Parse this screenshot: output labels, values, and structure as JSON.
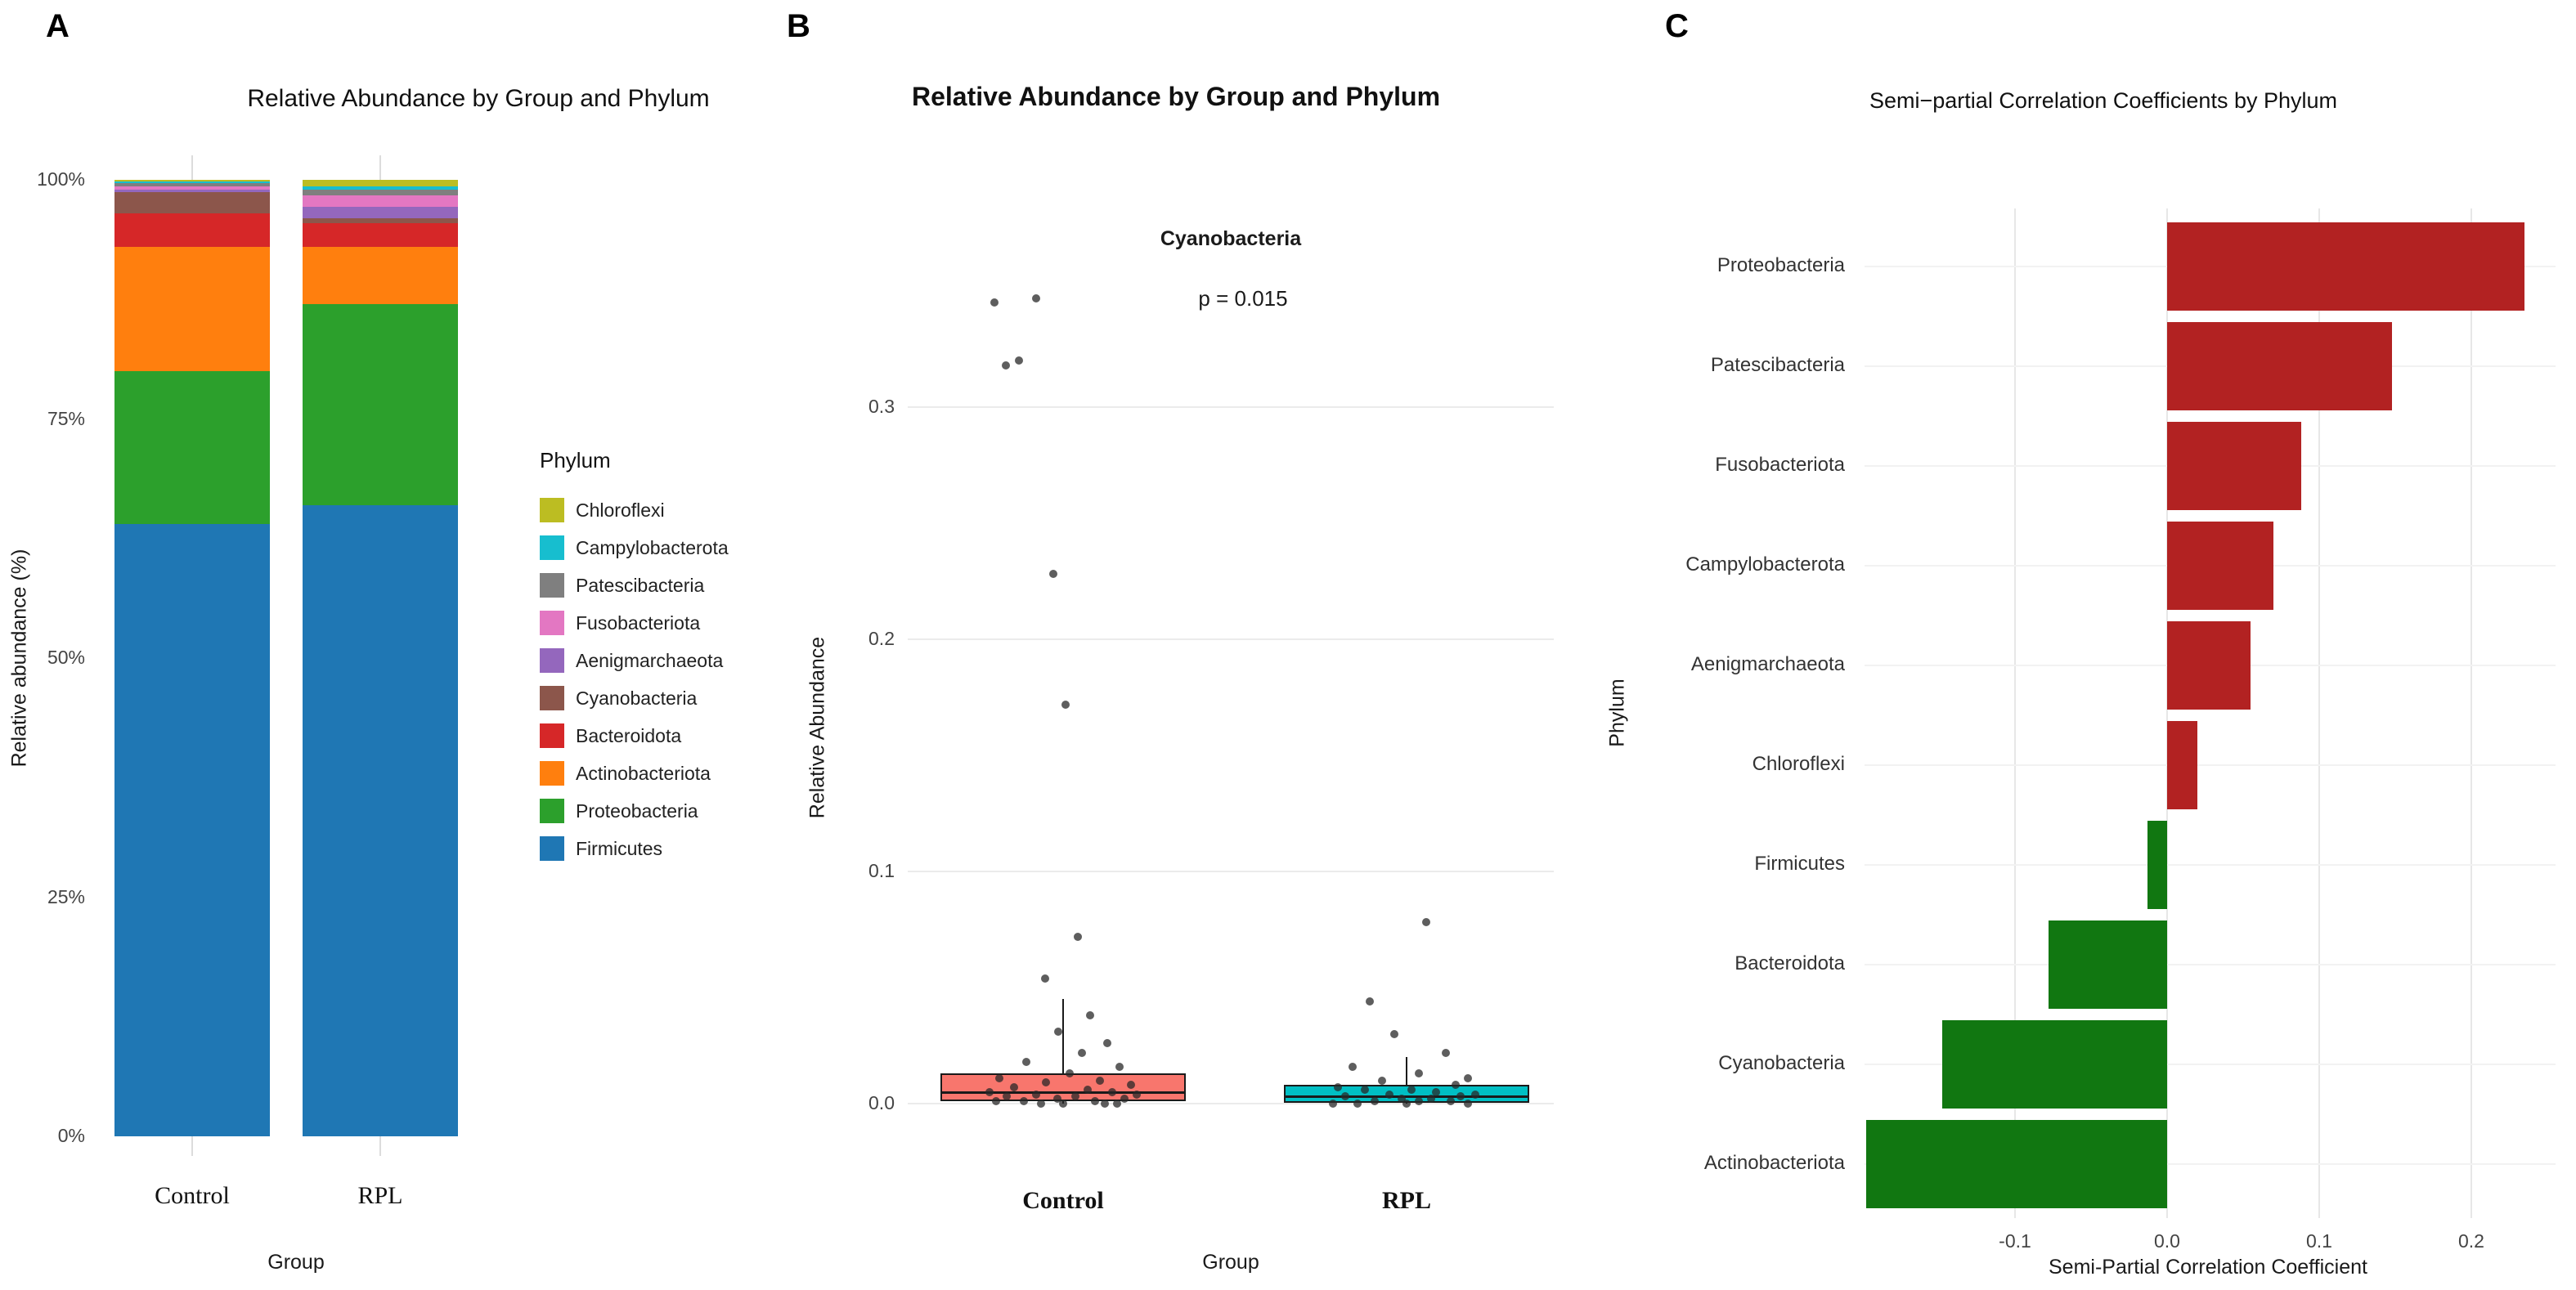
{
  "panels": {
    "a": {
      "label": "A",
      "title": "Relative Abundance by Group and Phylum",
      "x_axis_title": "Group",
      "y_axis_title": "Relative abundance (%)",
      "legend_title": "Phylum"
    },
    "b": {
      "label": "B",
      "title": "Relative Abundance by Group and Phylum",
      "subtitle": "Cyanobacteria",
      "p_value": "p = 0.015",
      "x_axis_title": "Group",
      "y_axis_title": "Relative Abundance"
    },
    "c": {
      "label": "C",
      "title": "Semi−partial Correlation Coefficients by Phylum",
      "x_axis_title": "Semi-Partial Correlation Coefficient",
      "y_axis_title": "Phylum"
    }
  },
  "chart_data": [
    {
      "panel": "A",
      "type": "bar",
      "subtype": "stacked-percent",
      "title": "Relative Abundance by Group and Phylum",
      "xlabel": "Group",
      "ylabel": "Relative abundance (%)",
      "ylim": [
        0,
        100
      ],
      "categories": [
        "Control",
        "RPL"
      ],
      "y_ticks": [
        {
          "v": 0,
          "label": "0%"
        },
        {
          "v": 25,
          "label": "25%"
        },
        {
          "v": 50,
          "label": "50%"
        },
        {
          "v": 75,
          "label": "75%"
        },
        {
          "v": 100,
          "label": "100%"
        }
      ],
      "legend_title": "Phylum",
      "legend_order": [
        "Chloroflexi",
        "Campylobacterota",
        "Patescibacteria",
        "Fusobacteriota",
        "Aenigmarchaeota",
        "Cyanobacteria",
        "Bacteroidota",
        "Actinobacteriota",
        "Proteobacteria",
        "Firmicutes"
      ],
      "stack_order_bottom_to_top": [
        "Firmicutes",
        "Proteobacteria",
        "Actinobacteriota",
        "Bacteroidota",
        "Cyanobacteria",
        "Aenigmarchaeota",
        "Fusobacteriota",
        "Patescibacteria",
        "Campylobacterota",
        "Chloroflexi"
      ],
      "series": [
        {
          "name": "Firmicutes",
          "color": "#1F77B4",
          "values": [
            64.0,
            66.0
          ]
        },
        {
          "name": "Proteobacteria",
          "color": "#2CA02C",
          "values": [
            16.0,
            21.0
          ]
        },
        {
          "name": "Actinobacteriota",
          "color": "#FF7F0E",
          "values": [
            13.0,
            6.0
          ]
        },
        {
          "name": "Bacteroidota",
          "color": "#D62728",
          "values": [
            3.5,
            2.5
          ]
        },
        {
          "name": "Cyanobacteria",
          "color": "#8C564B",
          "values": [
            2.2,
            0.5
          ]
        },
        {
          "name": "Aenigmarchaeota",
          "color": "#9467BD",
          "values": [
            0.3,
            1.2
          ]
        },
        {
          "name": "Fusobacteriota",
          "color": "#E377C2",
          "values": [
            0.3,
            1.2
          ]
        },
        {
          "name": "Patescibacteria",
          "color": "#7F7F7F",
          "values": [
            0.4,
            0.6
          ]
        },
        {
          "name": "Campylobacterota",
          "color": "#17BECF",
          "values": [
            0.1,
            0.3
          ]
        },
        {
          "name": "Chloroflexi",
          "color": "#BCBD22",
          "values": [
            0.2,
            0.7
          ]
        }
      ]
    },
    {
      "panel": "B",
      "type": "boxplot",
      "title": "Relative Abundance by Group and Phylum",
      "subtitle": "Cyanobacteria",
      "annotation": "p = 0.015",
      "xlabel": "Group",
      "ylabel": "Relative Abundance",
      "ylim": [
        -0.03,
        0.36
      ],
      "y_ticks": [
        {
          "v": 0.0,
          "label": "0.0"
        },
        {
          "v": 0.1,
          "label": "0.1"
        },
        {
          "v": 0.2,
          "label": "0.2"
        },
        {
          "v": 0.3,
          "label": "0.3"
        }
      ],
      "groups": [
        {
          "name": "Control",
          "color": "#F8766D",
          "box": {
            "whisker_low": 0.0,
            "q1": 0.001,
            "median": 0.005,
            "q3": 0.013,
            "whisker_high": 0.045
          },
          "points": [
            [
              0.345,
              -0.56
            ],
            [
              0.347,
              -0.22
            ],
            [
              0.318,
              -0.47
            ],
            [
              0.32,
              -0.36
            ],
            [
              0.228,
              -0.08
            ],
            [
              0.172,
              0.02
            ],
            [
              0.072,
              0.12
            ],
            [
              0.054,
              -0.15
            ],
            [
              0.038,
              0.22
            ],
            [
              0.031,
              -0.04
            ],
            [
              0.026,
              0.36
            ],
            [
              0.022,
              0.15
            ],
            [
              0.018,
              -0.3
            ],
            [
              0.016,
              0.46
            ],
            [
              0.013,
              0.05
            ],
            [
              0.011,
              -0.52
            ],
            [
              0.01,
              0.3
            ],
            [
              0.009,
              -0.14
            ],
            [
              0.008,
              0.55
            ],
            [
              0.007,
              -0.4
            ],
            [
              0.006,
              0.2
            ],
            [
              0.005,
              -0.6
            ],
            [
              0.005,
              0.4
            ],
            [
              0.004,
              -0.22
            ],
            [
              0.004,
              0.6
            ],
            [
              0.003,
              -0.46
            ],
            [
              0.003,
              0.1
            ],
            [
              0.002,
              -0.05
            ],
            [
              0.002,
              0.5
            ],
            [
              0.001,
              -0.32
            ],
            [
              0.001,
              0.26
            ],
            [
              0.001,
              -0.55
            ],
            [
              0.0,
              0.0
            ],
            [
              0.0,
              0.34
            ],
            [
              0.0,
              -0.18
            ],
            [
              0.0,
              0.44
            ]
          ]
        },
        {
          "name": "RPL",
          "color": "#00BFC4",
          "box": {
            "whisker_low": 0.0,
            "q1": 0.0005,
            "median": 0.003,
            "q3": 0.008,
            "whisker_high": 0.02
          },
          "points": [
            [
              0.078,
              0.16
            ],
            [
              0.044,
              -0.3
            ],
            [
              0.03,
              -0.1
            ],
            [
              0.022,
              0.32
            ],
            [
              0.016,
              -0.44
            ],
            [
              0.013,
              0.1
            ],
            [
              0.011,
              0.5
            ],
            [
              0.01,
              -0.2
            ],
            [
              0.008,
              0.4
            ],
            [
              0.007,
              -0.56
            ],
            [
              0.006,
              0.04
            ],
            [
              0.006,
              -0.34
            ],
            [
              0.005,
              0.24
            ],
            [
              0.004,
              0.56
            ],
            [
              0.004,
              -0.14
            ],
            [
              0.003,
              0.44
            ],
            [
              0.003,
              -0.5
            ],
            [
              0.002,
              0.2
            ],
            [
              0.002,
              -0.04
            ],
            [
              0.001,
              0.36
            ],
            [
              0.001,
              -0.26
            ],
            [
              0.001,
              0.1
            ],
            [
              0.0,
              -0.6
            ],
            [
              0.0,
              0.5
            ],
            [
              0.0,
              0.0
            ],
            [
              0.0,
              -0.4
            ]
          ]
        }
      ]
    },
    {
      "panel": "C",
      "type": "bar",
      "orientation": "horizontal",
      "title": "Semi−partial Correlation Coefficients by Phylum",
      "xlabel": "Semi-Partial Correlation Coefficient",
      "ylabel": "Phylum",
      "xlim": [
        -0.2,
        0.25
      ],
      "x_ticks": [
        {
          "v": -0.1,
          "label": "-0.1"
        },
        {
          "v": 0.0,
          "label": "0.0"
        },
        {
          "v": 0.1,
          "label": "0.1"
        },
        {
          "v": 0.2,
          "label": "0.2"
        }
      ],
      "positive_color": "#B22222",
      "negative_color": "#117711",
      "categories": [
        "Proteobacteria",
        "Patescibacteria",
        "Fusobacteriota",
        "Campylobacterota",
        "Aenigmarchaeota",
        "Chloroflexi",
        "Firmicutes",
        "Bacteroidota",
        "Cyanobacteria",
        "Actinobacteriota"
      ],
      "values": [
        0.235,
        0.148,
        0.088,
        0.07,
        0.055,
        0.02,
        -0.013,
        -0.078,
        -0.148,
        -0.198
      ]
    }
  ]
}
